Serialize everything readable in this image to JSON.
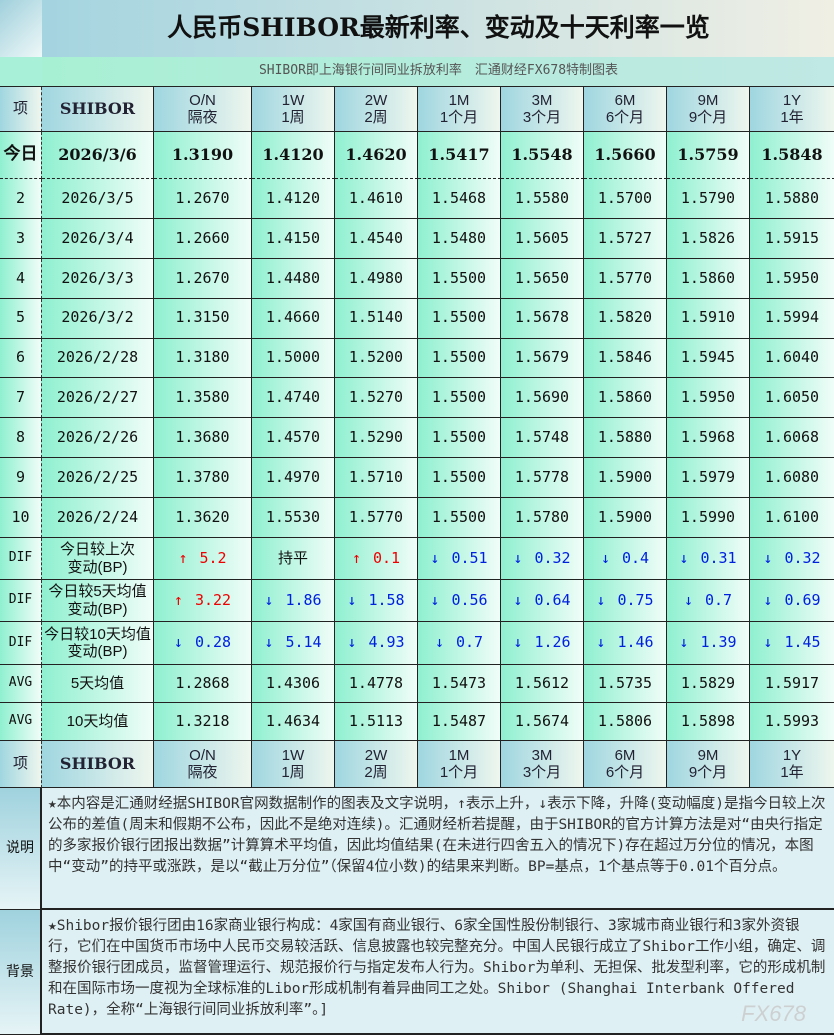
{
  "title": "人民币SHIBOR最新利率、变动及十天利率一览",
  "subtitle": "SHIBOR即上海银行间同业拆放利率　汇通财经FX678特制图表",
  "header": {
    "label": "项",
    "name": "SHIBOR",
    "tenors": [
      [
        "O/N",
        "隔夜"
      ],
      [
        "1W",
        "1周"
      ],
      [
        "2W",
        "2周"
      ],
      [
        "1M",
        "1个月"
      ],
      [
        "3M",
        "3个月"
      ],
      [
        "6M",
        "6个月"
      ],
      [
        "9M",
        "9个月"
      ],
      [
        "1Y",
        "1年"
      ]
    ]
  },
  "today": {
    "label": "今日",
    "date": "2026/3/6",
    "values": [
      "1.3190",
      "1.4120",
      "1.4620",
      "1.5417",
      "1.5548",
      "1.5660",
      "1.5759",
      "1.5848"
    ]
  },
  "history": [
    {
      "n": "2",
      "date": "2026/3/5",
      "values": [
        "1.2670",
        "1.4120",
        "1.4610",
        "1.5468",
        "1.5580",
        "1.5700",
        "1.5790",
        "1.5880"
      ]
    },
    {
      "n": "3",
      "date": "2026/3/4",
      "values": [
        "1.2660",
        "1.4150",
        "1.4540",
        "1.5480",
        "1.5605",
        "1.5727",
        "1.5826",
        "1.5915"
      ]
    },
    {
      "n": "4",
      "date": "2026/3/3",
      "values": [
        "1.2670",
        "1.4480",
        "1.4980",
        "1.5500",
        "1.5650",
        "1.5770",
        "1.5860",
        "1.5950"
      ]
    },
    {
      "n": "5",
      "date": "2026/3/2",
      "values": [
        "1.3150",
        "1.4660",
        "1.5140",
        "1.5500",
        "1.5678",
        "1.5820",
        "1.5910",
        "1.5994"
      ]
    },
    {
      "n": "6",
      "date": "2026/2/28",
      "values": [
        "1.3180",
        "1.5000",
        "1.5200",
        "1.5500",
        "1.5679",
        "1.5846",
        "1.5945",
        "1.6040"
      ]
    },
    {
      "n": "7",
      "date": "2026/2/27",
      "values": [
        "1.3580",
        "1.4740",
        "1.5270",
        "1.5500",
        "1.5690",
        "1.5860",
        "1.5950",
        "1.6050"
      ]
    },
    {
      "n": "8",
      "date": "2026/2/26",
      "values": [
        "1.3680",
        "1.4570",
        "1.5290",
        "1.5500",
        "1.5748",
        "1.5880",
        "1.5968",
        "1.6068"
      ]
    },
    {
      "n": "9",
      "date": "2026/2/25",
      "values": [
        "1.3780",
        "1.4970",
        "1.5710",
        "1.5500",
        "1.5778",
        "1.5900",
        "1.5979",
        "1.6080"
      ]
    },
    {
      "n": "10",
      "date": "2026/2/24",
      "values": [
        "1.3620",
        "1.5530",
        "1.5770",
        "1.5500",
        "1.5780",
        "1.5900",
        "1.5990",
        "1.6100"
      ]
    }
  ],
  "dif": [
    {
      "tag": "DIF",
      "label": "今日较上次\n变动(BP)",
      "cells": [
        {
          "dir": "up",
          "v": "5.2"
        },
        {
          "dir": "flat",
          "v": "持平"
        },
        {
          "dir": "up",
          "v": "0.1"
        },
        {
          "dir": "down",
          "v": "0.51"
        },
        {
          "dir": "down",
          "v": "0.32"
        },
        {
          "dir": "down",
          "v": "0.4"
        },
        {
          "dir": "down",
          "v": "0.31"
        },
        {
          "dir": "down",
          "v": "0.32"
        }
      ]
    },
    {
      "tag": "DIF",
      "label": "今日较5天均值\n变动(BP)",
      "cells": [
        {
          "dir": "up",
          "v": "3.22"
        },
        {
          "dir": "down",
          "v": "1.86"
        },
        {
          "dir": "down",
          "v": "1.58"
        },
        {
          "dir": "down",
          "v": "0.56"
        },
        {
          "dir": "down",
          "v": "0.64"
        },
        {
          "dir": "down",
          "v": "0.75"
        },
        {
          "dir": "down",
          "v": "0.7"
        },
        {
          "dir": "down",
          "v": "0.69"
        }
      ]
    },
    {
      "tag": "DIF",
      "label": "今日较10天均值\n变动(BP)",
      "cells": [
        {
          "dir": "down",
          "v": "0.28"
        },
        {
          "dir": "down",
          "v": "5.14"
        },
        {
          "dir": "down",
          "v": "4.93"
        },
        {
          "dir": "down",
          "v": "0.7"
        },
        {
          "dir": "down",
          "v": "1.26"
        },
        {
          "dir": "down",
          "v": "1.46"
        },
        {
          "dir": "down",
          "v": "1.39"
        },
        {
          "dir": "down",
          "v": "1.45"
        }
      ]
    }
  ],
  "avg": [
    {
      "tag": "AVG",
      "label": "5天均值",
      "values": [
        "1.2868",
        "1.4306",
        "1.4778",
        "1.5473",
        "1.5612",
        "1.5735",
        "1.5829",
        "1.5917"
      ]
    },
    {
      "tag": "AVG",
      "label": "10天均值",
      "values": [
        "1.3218",
        "1.4634",
        "1.5113",
        "1.5487",
        "1.5674",
        "1.5806",
        "1.5898",
        "1.5993"
      ]
    }
  ],
  "notes": [
    {
      "label": "说明",
      "text": "★本内容是汇通财经据SHIBOR官网数据制作的图表及文字说明，↑表示上升，↓表示下降，升降(变动幅度)是指今日较上次公布的差值(周末和假期不公布，因此不是绝对连续)。汇通财经析若提醒，由于SHIBOR的官方计算方法是对“由央行指定的多家报价银行团报出数据”计算算术平均值，因此均值结果(在未进行四舍五入的情况下)存在超过万分位的情况，本图中“变动”的持平或涨跌，是以“截止万分位”（保留4位小数)的结果来判断。BP=基点，1个基点等于0.01个百分点。"
    },
    {
      "label": "背景",
      "text": "★Shibor报价银行团由16家商业银行构成：4家国有商业银行、6家全国性股份制银行、3家城市商业银行和3家外资银行，它们在中国货币市场中人民币交易较活跃、信息披露也较完整充分。中国人民银行成立了Shibor工作小组，确定、调整报价银行团成员，监督管理运行、规范报价行与指定发布人行为。Shibor为单利、无担保、批发型利率，它的形成机制和在国际市场一度视为全球标准的Libor形成机制有着异曲同工之处。Shibor (Shanghai Interbank Offered Rate)，全称“上海银行间同业拆放利率”。]"
    }
  ],
  "watermark": "FX678",
  "colors": {
    "up": "#ee0000",
    "down": "#0020e0"
  }
}
